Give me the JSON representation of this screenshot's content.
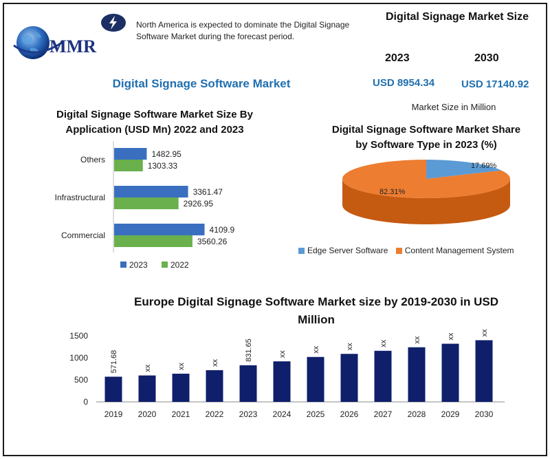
{
  "header": {
    "logo_text": "MMR",
    "note": "North America is expected to dominate the Digital Signage Software Market during the forecast period.",
    "market_size_title": "Digital Signage Market Size",
    "year_a": "2023",
    "year_b": "2030",
    "value_a": "USD 8954.34",
    "value_b": "USD 17140.92",
    "main_title": "Digital Signage Software Market",
    "size_unit": "Market Size in Million"
  },
  "colors": {
    "series_2023": "#3a6fc0",
    "series_2022": "#6ab04c",
    "pie_edge": "#5b9bd5",
    "pie_content": "#ed7d31",
    "europe_bar": "#0f1f6b",
    "accent": "#1f6fb0"
  },
  "chart_data": [
    {
      "type": "bar",
      "orientation": "horizontal",
      "title": "Digital Signage Software Market Size By Application (USD Mn) 2022 and 2023",
      "categories": [
        "Others",
        "Infrastructural",
        "Commercial"
      ],
      "series": [
        {
          "name": "2023",
          "values": [
            1482.95,
            3361.47,
            4109.9
          ],
          "labels": [
            "1482.95",
            "3361.47",
            "4109.9"
          ]
        },
        {
          "name": "2022",
          "values": [
            1303.33,
            2926.95,
            3560.26
          ],
          "labels": [
            "1303.33",
            "2926.95",
            "3560.26"
          ]
        }
      ],
      "legend": "bottom",
      "grid": false
    },
    {
      "type": "pie",
      "title": "Digital Signage Software Market Share by Software Type in 2023 (%)",
      "slices": [
        {
          "name": "Edge Server Software",
          "value": 17.69,
          "label": "17.69%"
        },
        {
          "name": "Content Management System",
          "value": 82.31,
          "label": "82.31%"
        }
      ],
      "legend": "bottom"
    },
    {
      "type": "bar",
      "title": "Europe Digital Signage Software Market size by 2019-2030 in USD Million",
      "categories": [
        "2019",
        "2020",
        "2021",
        "2022",
        "2023",
        "2024",
        "2025",
        "2026",
        "2027",
        "2028",
        "2029",
        "2030"
      ],
      "values": [
        571.68,
        600,
        640,
        720,
        831.65,
        920,
        1020,
        1090,
        1160,
        1240,
        1320,
        1400
      ],
      "data_labels": [
        "571.68",
        "xx",
        "xx",
        "xx",
        "831.65",
        "xx",
        "xx",
        "xx",
        "xx",
        "xx",
        "xx",
        "xx"
      ],
      "yticks": [
        "0",
        "500",
        "1000",
        "1500"
      ],
      "ylim": [
        0,
        1500
      ],
      "grid": false
    }
  ]
}
